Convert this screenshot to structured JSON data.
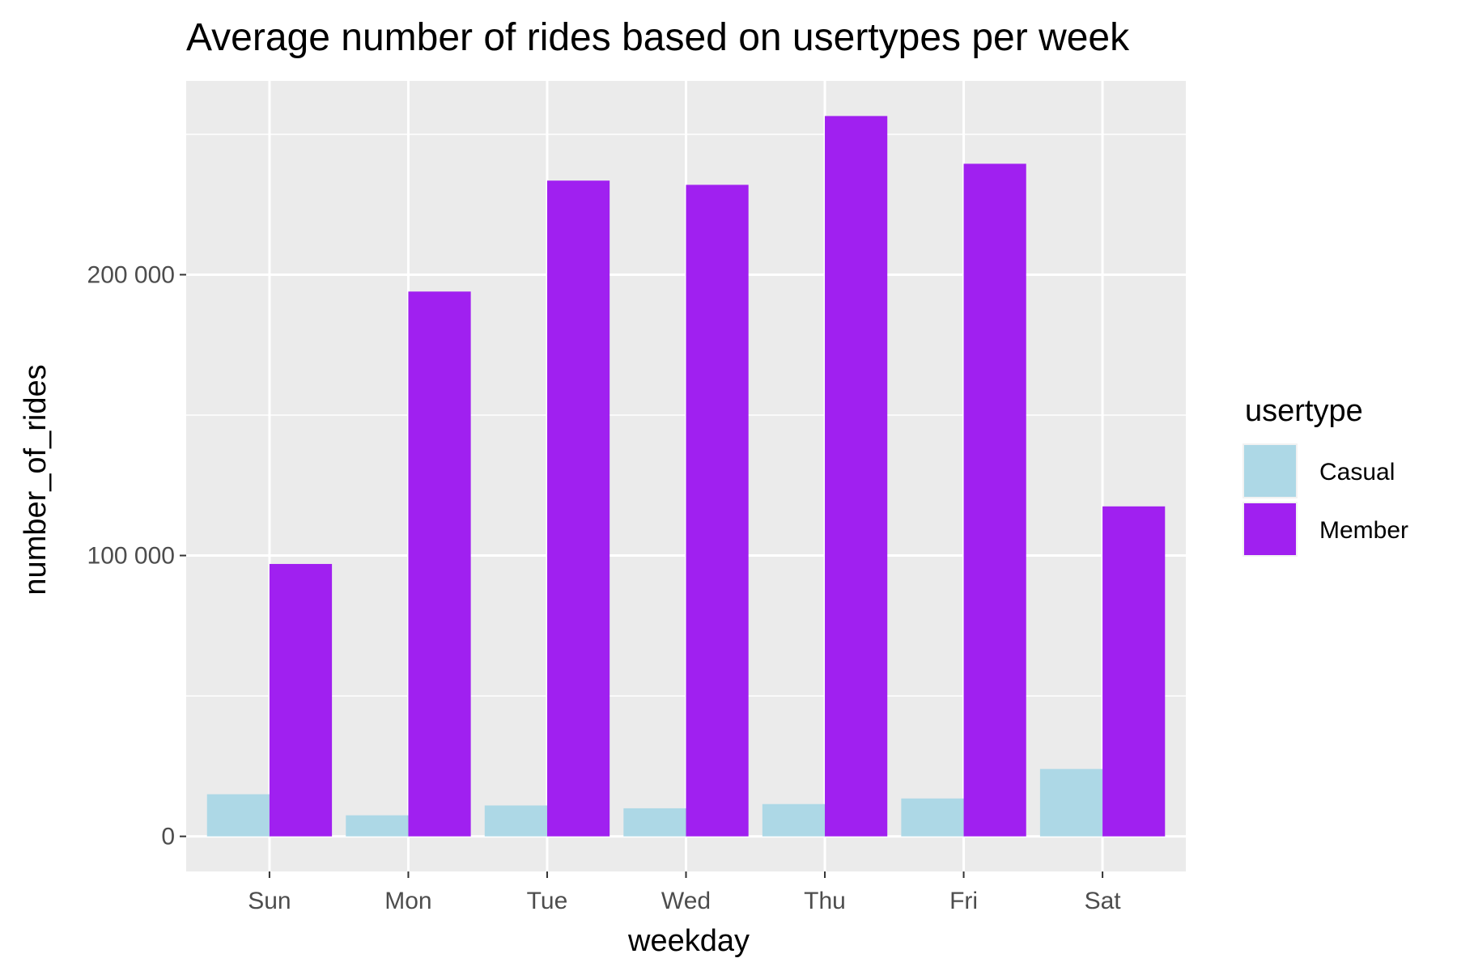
{
  "chart_data": {
    "type": "bar",
    "title": "Average number of rides based on usertypes per week",
    "xlabel": "weekday",
    "ylabel": "number_of_rides",
    "categories": [
      "Sun",
      "Mon",
      "Tue",
      "Wed",
      "Thu",
      "Fri",
      "Sat"
    ],
    "series": [
      {
        "name": "Casual",
        "color": "#add8e6",
        "values": [
          15000,
          7500,
          11000,
          10000,
          11500,
          13500,
          24000
        ]
      },
      {
        "name": "Member",
        "color": "#a020f0",
        "values": [
          97000,
          194000,
          233500,
          232000,
          256500,
          239500,
          117500
        ]
      }
    ],
    "ylim": [
      -12500,
      269000
    ],
    "yticks": [
      0,
      100000,
      200000
    ],
    "ytick_labels": [
      "0",
      "100 000",
      "200 000"
    ],
    "grid": true,
    "legend": {
      "title": "usertype",
      "position": "right"
    }
  }
}
